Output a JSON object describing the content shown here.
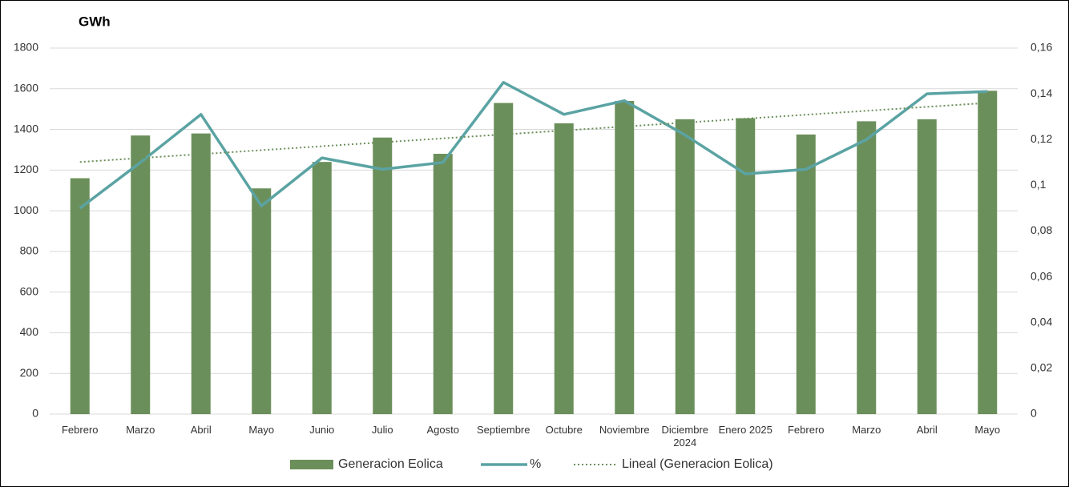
{
  "chart_data": {
    "type": "bar_line",
    "title": "GWh",
    "categories": [
      "Febrero",
      "Marzo",
      "Abril",
      "Mayo",
      "Junio",
      "Julio",
      "Agosto",
      "Septiembre",
      "Octubre",
      "Noviembre",
      "Diciembre\n2024",
      "Enero 2025",
      "Febrero",
      "Marzo",
      "Abril",
      "Mayo"
    ],
    "series": [
      {
        "name": "Generacion Eolica",
        "type": "bar",
        "color": "#6b8f5a",
        "values": [
          1160,
          1370,
          1380,
          1110,
          1240,
          1360,
          1280,
          1530,
          1430,
          1540,
          1450,
          1455,
          1375,
          1440,
          1450,
          1590
        ]
      },
      {
        "name": "%",
        "type": "line",
        "axis": "y2",
        "color": "#5ba3a3",
        "values": [
          0.09,
          0.11,
          0.131,
          0.091,
          0.112,
          0.107,
          0.11,
          0.145,
          0.131,
          0.137,
          0.122,
          0.105,
          0.107,
          0.12,
          0.14,
          0.141
        ]
      },
      {
        "name": "Lineal (Generacion Eolica)",
        "type": "trendline",
        "of": 0,
        "color": "#6b8f5a"
      }
    ],
    "ylim": [
      0,
      1800
    ],
    "yticks": [
      0,
      200,
      400,
      600,
      800,
      1000,
      1200,
      1400,
      1600,
      1800
    ],
    "y2lim": [
      0,
      0.16
    ],
    "y2ticks": [
      0,
      {
        "value": 0.02,
        "label": "0,02"
      },
      {
        "value": 0.04,
        "label": "0,04"
      },
      {
        "value": 0.06,
        "label": "0,06"
      },
      {
        "value": 0.08,
        "label": "0,08"
      },
      {
        "value": 0.1,
        "label": "0,1"
      },
      {
        "value": 0.12,
        "label": "0,12"
      },
      {
        "value": 0.14,
        "label": "0,14"
      },
      {
        "value": 0.16,
        "label": "0,16"
      }
    ],
    "grid": true,
    "legend": "bottom"
  }
}
